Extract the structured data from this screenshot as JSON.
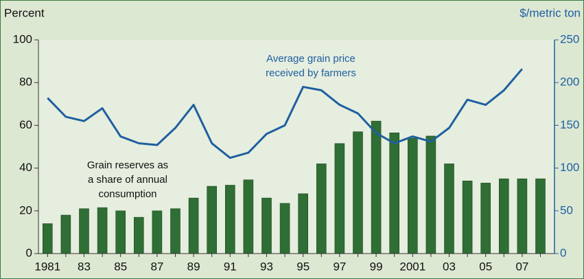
{
  "chart_data": {
    "type": "bar",
    "y_label": "Percent",
    "y2_label": "$/metric ton",
    "annotations": [
      {
        "lines": [
          "Average grain price",
          "received by farmers"
        ],
        "color": "#1f5fa0"
      },
      {
        "lines": [
          "Grain reserves as",
          "a share of annual",
          "consumption"
        ],
        "color": "#111111"
      }
    ],
    "categories": [
      "1981",
      null,
      "83",
      null,
      "85",
      null,
      "87",
      null,
      "89",
      null,
      "91",
      null,
      "93",
      null,
      "95",
      null,
      "97",
      null,
      "99",
      null,
      "2001",
      null,
      "03",
      null,
      "05",
      null,
      "07",
      null
    ],
    "series": [
      {
        "name": "Grain reserves as a share of annual consumption",
        "type": "bar",
        "color": "#2f6e34",
        "values": [
          14,
          18,
          21,
          21.5,
          20,
          17,
          20,
          21,
          26,
          31.5,
          32,
          34.5,
          26,
          23.5,
          28,
          42,
          51.5,
          57,
          62,
          56.5,
          54,
          55,
          42,
          34,
          33,
          35,
          35,
          35
        ]
      },
      {
        "name": "Average grain price received by farmers",
        "type": "line",
        "axis": "y2",
        "color": "#1f5fa0",
        "values": [
          182,
          160,
          155,
          170,
          137,
          129,
          127,
          147,
          174,
          129,
          112,
          118,
          140,
          150,
          195,
          191,
          174,
          164,
          141,
          129,
          137,
          131,
          147,
          180,
          174,
          191,
          216,
          null
        ]
      }
    ],
    "ylim": [
      0,
      100
    ],
    "yticks": [
      0,
      20,
      40,
      60,
      80,
      100
    ],
    "y2lim": [
      0,
      250
    ],
    "y2ticks": [
      0,
      50,
      100,
      150,
      200,
      250
    ]
  }
}
